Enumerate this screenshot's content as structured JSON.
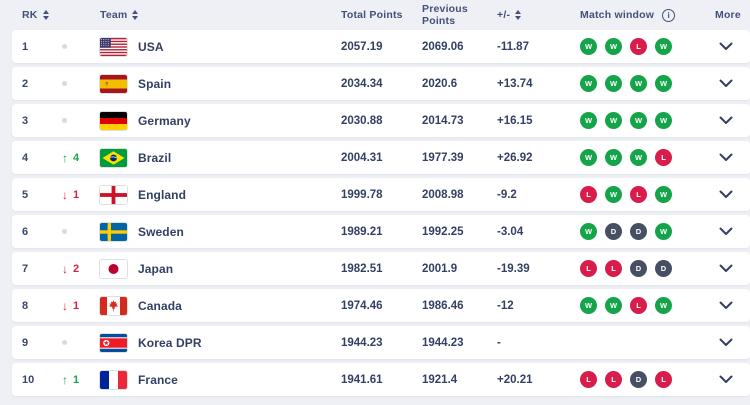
{
  "table": {
    "columns": [
      {
        "id": "rk",
        "label": "RK",
        "sortable": true
      },
      {
        "id": "team",
        "label": "Team",
        "sortable": true
      },
      {
        "id": "total_points",
        "label": "Total Points",
        "sortable": false
      },
      {
        "id": "previous_points",
        "label": "Previous Points",
        "sortable": false
      },
      {
        "id": "plus_minus",
        "label": "+/-",
        "sortable": true
      },
      {
        "id": "match_window",
        "label": "Match window",
        "sortable": false,
        "info_icon": true
      },
      {
        "id": "more",
        "label": "More",
        "sortable": false
      }
    ],
    "rows": [
      {
        "rank": "1",
        "change": {
          "dir": "none",
          "value": ""
        },
        "flag": "usa",
        "team": "USA",
        "total": "2057.19",
        "previous": "2069.06",
        "diff": "-11.87",
        "matches": [
          "W",
          "W",
          "L",
          "W"
        ]
      },
      {
        "rank": "2",
        "change": {
          "dir": "none",
          "value": ""
        },
        "flag": "spain",
        "team": "Spain",
        "total": "2034.34",
        "previous": "2020.6",
        "diff": "+13.74",
        "matches": [
          "W",
          "W",
          "W",
          "W"
        ]
      },
      {
        "rank": "3",
        "change": {
          "dir": "none",
          "value": ""
        },
        "flag": "germany",
        "team": "Germany",
        "total": "2030.88",
        "previous": "2014.73",
        "diff": "+16.15",
        "matches": [
          "W",
          "W",
          "W",
          "W"
        ]
      },
      {
        "rank": "4",
        "change": {
          "dir": "up",
          "value": "4"
        },
        "flag": "brazil",
        "team": "Brazil",
        "total": "2004.31",
        "previous": "1977.39",
        "diff": "+26.92",
        "matches": [
          "W",
          "W",
          "W",
          "L"
        ]
      },
      {
        "rank": "5",
        "change": {
          "dir": "down",
          "value": "1"
        },
        "flag": "england",
        "team": "England",
        "total": "1999.78",
        "previous": "2008.98",
        "diff": "-9.2",
        "matches": [
          "L",
          "W",
          "L",
          "W"
        ]
      },
      {
        "rank": "6",
        "change": {
          "dir": "none",
          "value": ""
        },
        "flag": "sweden",
        "team": "Sweden",
        "total": "1989.21",
        "previous": "1992.25",
        "diff": "-3.04",
        "matches": [
          "W",
          "D",
          "D",
          "W"
        ]
      },
      {
        "rank": "7",
        "change": {
          "dir": "down",
          "value": "2"
        },
        "flag": "japan",
        "team": "Japan",
        "total": "1982.51",
        "previous": "2001.9",
        "diff": "-19.39",
        "matches": [
          "L",
          "L",
          "D",
          "D"
        ]
      },
      {
        "rank": "8",
        "change": {
          "dir": "down",
          "value": "1"
        },
        "flag": "canada",
        "team": "Canada",
        "total": "1974.46",
        "previous": "1986.46",
        "diff": "-12",
        "matches": [
          "W",
          "W",
          "L",
          "W"
        ]
      },
      {
        "rank": "9",
        "change": {
          "dir": "none",
          "value": ""
        },
        "flag": "korea_dpr",
        "team": "Korea DPR",
        "total": "1944.23",
        "previous": "1944.23",
        "diff": "-",
        "matches": []
      },
      {
        "rank": "10",
        "change": {
          "dir": "up",
          "value": "1"
        },
        "flag": "france",
        "team": "France",
        "total": "1941.61",
        "previous": "1921.4",
        "diff": "+20.21",
        "matches": [
          "L",
          "L",
          "D",
          "L"
        ]
      }
    ]
  },
  "icons": {
    "sort": "sort-arrows",
    "info": "circled-i",
    "more": "chevron-down",
    "rank_up": "↑",
    "rank_down": "↓"
  },
  "colors": {
    "win": "#16a44b",
    "loss": "#d81c4b",
    "draw": "#474f63",
    "up": "#17a44c",
    "down": "#d6244a",
    "text": "#333f63",
    "page_bg": "#eef0f5",
    "row_bg": "#ffffff"
  }
}
